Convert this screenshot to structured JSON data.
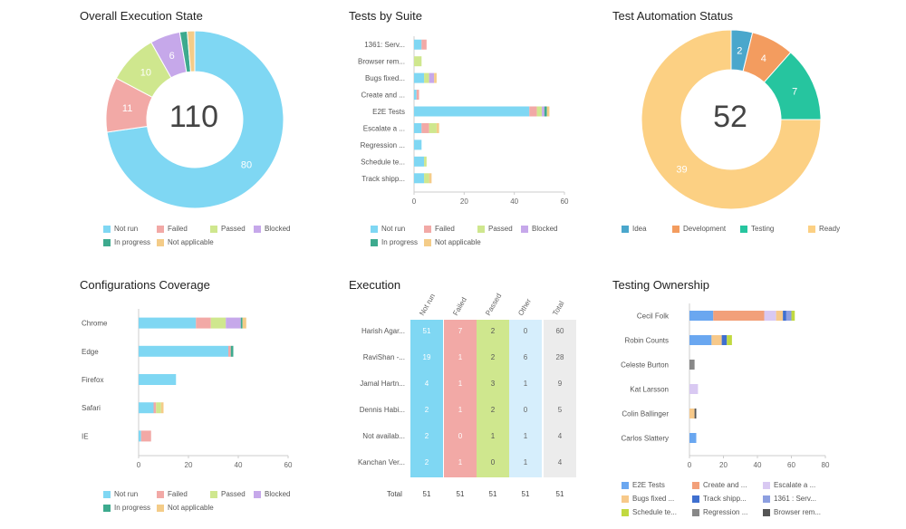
{
  "colors": {
    "not_run": "#7fd7f3",
    "failed": "#f2a9a6",
    "passed": "#cfe78e",
    "blocked": "#c6a8ea",
    "in_progress": "#3daa8e",
    "not_applicable": "#f4cc88",
    "idea": "#4aa7cc",
    "development": "#f39c5f",
    "testing": "#26c59f",
    "ready": "#fcd083",
    "e2e": "#6aa7f0",
    "create": "#f2a07a",
    "escalate": "#d9c9f2",
    "bugs": "#f7c98a",
    "track": "#3f6fcf",
    "server": "#8d9fe0",
    "schedule": "#c1d940",
    "regression": "#888888",
    "browser": "#555555"
  },
  "status_legend": [
    {
      "label": "Not run",
      "color": "#7fd7f3"
    },
    {
      "label": "Failed",
      "color": "#f2a9a6"
    },
    {
      "label": "Passed",
      "color": "#cfe78e"
    },
    {
      "label": "Blocked",
      "color": "#c6a8ea"
    },
    {
      "label": "In progress",
      "color": "#3daa8e"
    },
    {
      "label": "Not applicable",
      "color": "#f4cc88"
    }
  ],
  "chart_data": [
    {
      "id": "overall",
      "type": "pie",
      "title": "Overall Execution State",
      "center_value": "110",
      "slices": [
        {
          "name": "Not run",
          "value": 80,
          "label": "80",
          "color": "#7fd7f3"
        },
        {
          "name": "Failed",
          "value": 11,
          "label": "11",
          "color": "#f2a9a6"
        },
        {
          "name": "Passed",
          "value": 10,
          "label": "10",
          "color": "#cfe78e"
        },
        {
          "name": "Blocked",
          "value": 6,
          "label": "6",
          "color": "#c6a8ea"
        },
        {
          "name": "In progress",
          "value": 1.5,
          "label": "",
          "color": "#3daa8e"
        },
        {
          "name": "Not applicable",
          "value": 1.5,
          "label": "",
          "color": "#f4cc88"
        }
      ]
    },
    {
      "id": "suite",
      "type": "bar",
      "title": "Tests by Suite",
      "categories": [
        "1361: Serv...",
        "Browser rem...",
        "Bugs fixed...",
        "Create and ...",
        "E2E Tests",
        "Escalate a ...",
        "Regression ...",
        "Schedule te...",
        "Track shipp..."
      ],
      "series": [
        {
          "name": "Not run",
          "values": [
            3,
            0,
            4,
            1,
            46,
            3,
            3,
            4,
            4
          ]
        },
        {
          "name": "Failed",
          "values": [
            2,
            0,
            0,
            1,
            3,
            3,
            0,
            0,
            0
          ]
        },
        {
          "name": "Passed",
          "values": [
            0,
            3,
            2,
            0,
            2,
            3,
            0,
            1,
            2
          ]
        },
        {
          "name": "Blocked",
          "values": [
            0,
            0,
            2,
            0,
            1,
            0,
            0,
            0,
            0
          ]
        },
        {
          "name": "In progress",
          "values": [
            0,
            0,
            0,
            0,
            1,
            0,
            0,
            0,
            0
          ]
        },
        {
          "name": "Not applicable",
          "values": [
            0,
            0,
            1,
            0,
            1,
            1,
            0,
            0,
            1
          ]
        }
      ],
      "xlim": [
        0,
        60
      ],
      "xticks": [
        "0",
        "20",
        "40",
        "60"
      ]
    },
    {
      "id": "automation",
      "type": "pie",
      "title": "Test Automation Status",
      "center_value": "52",
      "slices": [
        {
          "name": "Idea",
          "value": 2,
          "label": "2",
          "color": "#4aa7cc"
        },
        {
          "name": "Development",
          "value": 4,
          "label": "4",
          "color": "#f39c5f"
        },
        {
          "name": "Testing",
          "value": 7,
          "label": "7",
          "color": "#26c59f"
        },
        {
          "name": "Ready",
          "value": 39,
          "label": "39",
          "color": "#fcd083"
        }
      ]
    },
    {
      "id": "config",
      "type": "bar",
      "title": "Configurations Coverage",
      "categories": [
        "Chrome",
        "Edge",
        "Firefox",
        "Safari",
        "IE"
      ],
      "series": [
        {
          "name": "Not run",
          "values": [
            23,
            36,
            15,
            6,
            1
          ]
        },
        {
          "name": "Failed",
          "values": [
            6,
            1,
            0,
            1,
            4
          ]
        },
        {
          "name": "Passed",
          "values": [
            6,
            0,
            0,
            2,
            0
          ]
        },
        {
          "name": "Blocked",
          "values": [
            6,
            0,
            0,
            0,
            0
          ]
        },
        {
          "name": "In progress",
          "values": [
            0.7,
            1,
            0,
            0,
            0
          ]
        },
        {
          "name": "Not applicable",
          "values": [
            1.5,
            0,
            0,
            1,
            0
          ]
        }
      ],
      "xlim": [
        0,
        60
      ],
      "xticks": [
        "0",
        "20",
        "40",
        "60"
      ]
    },
    {
      "id": "ownership",
      "type": "bar",
      "title": "Testing Ownership",
      "categories": [
        "Cecil Folk",
        "Robin Counts",
        "Celeste Burton",
        "Kat Larsson",
        "Colin Ballinger",
        "Carlos Slattery"
      ],
      "series": [
        {
          "name": "E2E Tests",
          "values": [
            14,
            13,
            0,
            0,
            0,
            4
          ]
        },
        {
          "name": "Create and ...",
          "values": [
            30,
            0,
            0,
            0,
            0,
            0
          ]
        },
        {
          "name": "Escalate a ...",
          "values": [
            7,
            0,
            0,
            5,
            0,
            0
          ]
        },
        {
          "name": "Bugs fixed ...",
          "values": [
            4,
            6,
            0,
            0,
            3,
            0
          ]
        },
        {
          "name": "Track shipp...",
          "values": [
            2,
            3,
            0,
            0,
            0,
            0
          ]
        },
        {
          "name": "1361 : Serv...",
          "values": [
            3,
            0,
            0,
            0,
            0,
            0
          ]
        },
        {
          "name": "Schedule te...",
          "values": [
            2,
            3,
            0,
            0,
            0,
            0
          ]
        },
        {
          "name": "Regression ...",
          "values": [
            0,
            0,
            3,
            0,
            0,
            0
          ]
        },
        {
          "name": "Browser rem...",
          "values": [
            0,
            0,
            0,
            0,
            1,
            0
          ]
        }
      ],
      "xlim": [
        0,
        80
      ],
      "xticks": [
        "0",
        "20",
        "40",
        "60",
        "80"
      ]
    },
    {
      "id": "execution",
      "type": "table",
      "title": "Execution",
      "columns": [
        "Not run",
        "Failed",
        "Passed",
        "Other",
        "Total"
      ],
      "rows": [
        {
          "name": "Harish Agar...",
          "values": [
            "51",
            "7",
            "2",
            "0",
            "60"
          ]
        },
        {
          "name": "RaviShan -...",
          "values": [
            "19",
            "1",
            "2",
            "6",
            "28"
          ]
        },
        {
          "name": "Jamal Hartn...",
          "values": [
            "4",
            "1",
            "3",
            "1",
            "9"
          ]
        },
        {
          "name": "Dennis Habi...",
          "values": [
            "2",
            "1",
            "2",
            "0",
            "5"
          ]
        },
        {
          "name": "Not availab...",
          "values": [
            "2",
            "0",
            "1",
            "1",
            "4"
          ]
        },
        {
          "name": "Kanchan Ver...",
          "values": [
            "2",
            "1",
            "0",
            "1",
            "4"
          ]
        }
      ],
      "total_label": "Total",
      "totals": [
        "51",
        "51",
        "51",
        "51",
        "51"
      ]
    }
  ],
  "automation_legend": [
    {
      "label": "Idea",
      "color": "#4aa7cc"
    },
    {
      "label": "Development",
      "color": "#f39c5f"
    },
    {
      "label": "Testing",
      "color": "#26c59f"
    },
    {
      "label": "Ready",
      "color": "#fcd083"
    }
  ],
  "ownership_legend": [
    {
      "label": "E2E Tests",
      "color": "#6aa7f0"
    },
    {
      "label": "Create and ...",
      "color": "#f2a07a"
    },
    {
      "label": "Escalate a ...",
      "color": "#d9c9f2"
    },
    {
      "label": "Bugs fixed ...",
      "color": "#f7c98a"
    },
    {
      "label": "Track shipp...",
      "color": "#3f6fcf"
    },
    {
      "label": "1361 : Serv...",
      "color": "#8d9fe0"
    },
    {
      "label": "Schedule te...",
      "color": "#c1d940"
    },
    {
      "label": "Regression ...",
      "color": "#888888"
    },
    {
      "label": "Browser rem...",
      "color": "#555555"
    }
  ]
}
